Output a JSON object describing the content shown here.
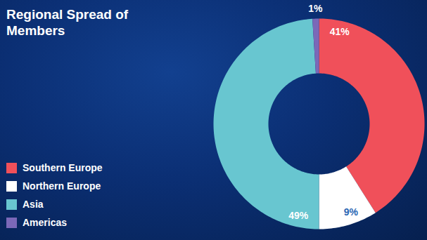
{
  "chart_data": {
    "type": "donut",
    "title": "Regional Spread of Members",
    "categories": [
      "Southern Europe",
      "Northern Europe",
      "Asia",
      "Americas"
    ],
    "values": [
      41,
      9,
      49,
      1
    ],
    "value_labels": [
      "41%",
      "9%",
      "49%",
      "1%"
    ],
    "colors": [
      "#f0505a",
      "#ffffff",
      "#68c6d0",
      "#7b68b8"
    ],
    "data_labels": true,
    "legend": "bottom-left"
  }
}
